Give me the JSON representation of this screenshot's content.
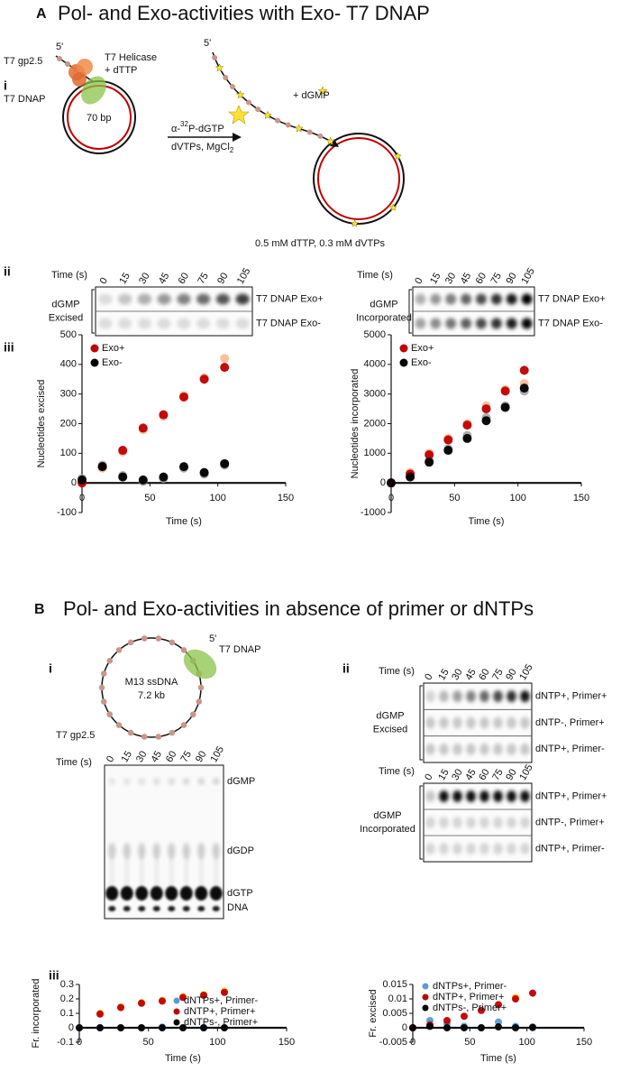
{
  "panel_a": {
    "letter": "A",
    "title": "Pol- and Exo-activities with Exo- T7 DNAP",
    "i": {
      "label": "i",
      "five_prime": "5'",
      "gp25": "T7 gp2.5",
      "helicase": "T7 Helicase",
      "dttp": "+ dTTP",
      "dnap": "T7 DNAP",
      "bp": "70 bp",
      "reagent_1": [
        "α-",
        "32",
        "P-dGTP"
      ],
      "reagent_2": [
        "dVTPs, MgCl",
        "2"
      ],
      "five_prime_2": "5'",
      "dgmp": "+ dGMP"
    },
    "conditions": "0.5 mM dTTP, 0.3 mM dVTPs",
    "ii": {
      "label": "ii",
      "gels": [
        {
          "time_label": "Time (s)",
          "lanes": [
            "0",
            "15",
            "30",
            "45",
            "60",
            "75",
            "90",
            "105"
          ],
          "rows": [
            "T7 DNAP Exo+",
            "T7 DNAP Exo-"
          ],
          "side_label": [
            "dGMP",
            "Excised"
          ]
        },
        {
          "time_label": "Time (s)",
          "lanes": [
            "0",
            "15",
            "30",
            "45",
            "60",
            "75",
            "90",
            "105"
          ],
          "rows": [
            "T7 DNAP Exo+",
            "T7 DNAP Exo-"
          ],
          "side_label": [
            "dGMP",
            "Incorporated"
          ]
        }
      ]
    },
    "iii": {
      "label": "iii"
    }
  },
  "panel_b": {
    "letter": "B",
    "title": "Pol- and Exo-activities in absence of primer or dNTPs",
    "i": {
      "label": "i",
      "five_prime": "5'",
      "dnap": "T7 DNAP",
      "ssdna": "M13 ssDNA",
      "size": "7.2 kb",
      "gp25": "T7 gp2.5",
      "tlc": {
        "time_label": "Time (s)",
        "lanes": [
          "0",
          "15",
          "30",
          "45",
          "60",
          "75",
          "90",
          "105"
        ],
        "spots": [
          "dGMP",
          "dGDP",
          "dGTP",
          "DNA"
        ]
      }
    },
    "ii": {
      "label": "ii",
      "gels": [
        {
          "time_label": "Time (s)",
          "lanes": [
            "0",
            "15",
            "30",
            "45",
            "60",
            "75",
            "90",
            "105"
          ],
          "rows": [
            "dNTP+, Primer+",
            "dNTP-, Primer+",
            "dNTP+, Primer-"
          ],
          "side_label": [
            "dGMP",
            "Excised"
          ]
        },
        {
          "time_label": "Time (s)",
          "lanes": [
            "0",
            "15",
            "30",
            "45",
            "60",
            "75",
            "90",
            "105"
          ],
          "rows": [
            "dNTP+, Primer+",
            "dNTP-, Primer+",
            "dNTP+, Primer-"
          ],
          "side_label": [
            "dGMP",
            "Incorporated"
          ]
        }
      ]
    },
    "iii": {
      "label": "iii"
    }
  },
  "chart_data": [
    {
      "type": "scatter",
      "xlabel": "Time (s)",
      "ylabel": "Nucleotides excised",
      "legend": "upper-left",
      "x": [
        0,
        15,
        30,
        45,
        60,
        75,
        90,
        105
      ],
      "xlim": [
        0,
        150
      ],
      "xticks": [
        0,
        50,
        100,
        150
      ],
      "ylim": [
        -100,
        500
      ],
      "yticks": [
        -100,
        0,
        100,
        200,
        300,
        400,
        500
      ],
      "series": [
        {
          "name": "Exo+",
          "color": "#c00000",
          "values": [
            0,
            55,
            110,
            185,
            230,
            290,
            350,
            390
          ]
        },
        {
          "name": "Exo-",
          "color": "#000000",
          "values": [
            10,
            55,
            20,
            10,
            20,
            55,
            35,
            65
          ]
        },
        {
          "color": "#f4b183",
          "values": [
            5,
            50,
            105,
            180,
            225,
            295,
            355,
            420
          ]
        },
        {
          "color": "#999999",
          "values": [
            15,
            60,
            25,
            5,
            15,
            50,
            30,
            60
          ]
        }
      ]
    },
    {
      "type": "scatter",
      "xlabel": "Time (s)",
      "ylabel": "Nucleotides incorporated",
      "legend": "upper-left",
      "x": [
        0,
        15,
        30,
        45,
        60,
        75,
        90,
        105
      ],
      "xlim": [
        0,
        150
      ],
      "xticks": [
        0,
        50,
        100,
        150
      ],
      "ylim": [
        -1000,
        5000
      ],
      "yticks": [
        -1000,
        0,
        1000,
        2000,
        3000,
        4000,
        5000
      ],
      "series": [
        {
          "name": "Exo+",
          "color": "#c00000",
          "values": [
            0,
            300,
            950,
            1450,
            1950,
            2500,
            3100,
            3800
          ]
        },
        {
          "name": "Exo-",
          "color": "#000000",
          "values": [
            0,
            200,
            700,
            1100,
            1500,
            2100,
            2550,
            3200
          ]
        },
        {
          "color": "#f4b183",
          "values": [
            0,
            350,
            1000,
            1500,
            2000,
            2600,
            3150,
            3350
          ]
        },
        {
          "color": "#999999",
          "values": [
            0,
            250,
            750,
            1150,
            1600,
            2200,
            2600,
            3100
          ]
        }
      ]
    },
    {
      "type": "scatter",
      "xlabel": "Time (s)",
      "ylabel": "Fr. incorporated",
      "legend": "lower-right",
      "x": [
        0,
        15,
        30,
        45,
        60,
        75,
        90,
        105
      ],
      "xlim": [
        0,
        150
      ],
      "xticks": [
        0,
        50,
        100,
        150
      ],
      "ylim": [
        -0.1,
        0.3
      ],
      "yticks": [
        -0.1,
        0,
        0.1,
        0.2,
        0.3
      ],
      "series": [
        {
          "name": "dNTPs+, Primer-",
          "color": "#5b9bd5",
          "values": [
            0,
            0,
            0,
            0,
            0.005,
            0,
            0,
            0
          ]
        },
        {
          "name": "dNTP+, Primer+",
          "color": "#c00000",
          "values": [
            null,
            0.095,
            0.14,
            0.17,
            0.185,
            0.21,
            0.225,
            0.245
          ]
        },
        {
          "name": "dNTPs-, Primer+",
          "color": "#000000",
          "values": [
            0,
            0,
            0,
            0,
            0,
            0,
            0,
            0
          ]
        },
        {
          "color": "#ffc000",
          "values": [
            null,
            0.1,
            0.145,
            0.175,
            0.19,
            0.215,
            0.23,
            0.255
          ]
        }
      ]
    },
    {
      "type": "scatter",
      "xlabel": "Time (s)",
      "ylabel": "Fr. excised",
      "legend": "upper-left",
      "x": [
        0,
        15,
        30,
        45,
        60,
        75,
        90,
        105
      ],
      "xlim": [
        0,
        150
      ],
      "xticks": [
        0,
        50,
        100,
        150
      ],
      "ylim": [
        -0.005,
        0.015
      ],
      "yticks": [
        -0.005,
        0,
        0.005,
        0.01,
        0.015
      ],
      "series": [
        {
          "name": "dNTPs+, Primer-",
          "color": "#5b9bd5",
          "values": [
            0,
            0.0025,
            0.0015,
            0.0005,
            0,
            0.002,
            0.0005,
            0
          ]
        },
        {
          "name": "dNTP+, Primer+",
          "color": "#c00000",
          "values": [
            0,
            0.001,
            0.0025,
            0.004,
            0.006,
            0.008,
            0.01,
            0.012
          ]
        },
        {
          "name": "dNTPs-, Primer+",
          "color": "#000000",
          "values": [
            0,
            0.0005,
            0,
            0,
            0,
            0.0003,
            0,
            0.0002
          ]
        },
        {
          "color": "#ffc000",
          "values": [
            null,
            null,
            null,
            null,
            null,
            null,
            0.0105,
            null
          ]
        }
      ]
    }
  ]
}
